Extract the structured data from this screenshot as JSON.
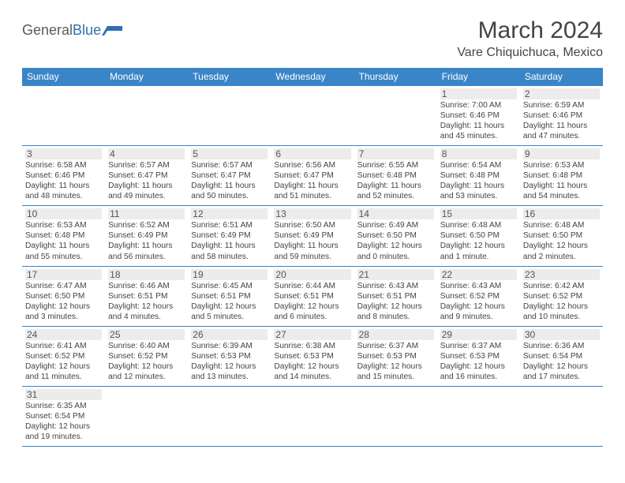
{
  "brand": {
    "text1": "General",
    "text2": "Blue"
  },
  "title": "March 2024",
  "location": "Vare Chiquichuca, Mexico",
  "colors": {
    "header_bg": "#3a85c7",
    "brand_blue": "#2f6fb0",
    "daynum_bg": "#ececec"
  },
  "weekdays": [
    "Sunday",
    "Monday",
    "Tuesday",
    "Wednesday",
    "Thursday",
    "Friday",
    "Saturday"
  ],
  "weeks": [
    [
      null,
      null,
      null,
      null,
      null,
      {
        "n": "1",
        "sr": "Sunrise: 7:00 AM",
        "ss": "Sunset: 6:46 PM",
        "dl": "Daylight: 11 hours and 45 minutes."
      },
      {
        "n": "2",
        "sr": "Sunrise: 6:59 AM",
        "ss": "Sunset: 6:46 PM",
        "dl": "Daylight: 11 hours and 47 minutes."
      }
    ],
    [
      {
        "n": "3",
        "sr": "Sunrise: 6:58 AM",
        "ss": "Sunset: 6:46 PM",
        "dl": "Daylight: 11 hours and 48 minutes."
      },
      {
        "n": "4",
        "sr": "Sunrise: 6:57 AM",
        "ss": "Sunset: 6:47 PM",
        "dl": "Daylight: 11 hours and 49 minutes."
      },
      {
        "n": "5",
        "sr": "Sunrise: 6:57 AM",
        "ss": "Sunset: 6:47 PM",
        "dl": "Daylight: 11 hours and 50 minutes."
      },
      {
        "n": "6",
        "sr": "Sunrise: 6:56 AM",
        "ss": "Sunset: 6:47 PM",
        "dl": "Daylight: 11 hours and 51 minutes."
      },
      {
        "n": "7",
        "sr": "Sunrise: 6:55 AM",
        "ss": "Sunset: 6:48 PM",
        "dl": "Daylight: 11 hours and 52 minutes."
      },
      {
        "n": "8",
        "sr": "Sunrise: 6:54 AM",
        "ss": "Sunset: 6:48 PM",
        "dl": "Daylight: 11 hours and 53 minutes."
      },
      {
        "n": "9",
        "sr": "Sunrise: 6:53 AM",
        "ss": "Sunset: 6:48 PM",
        "dl": "Daylight: 11 hours and 54 minutes."
      }
    ],
    [
      {
        "n": "10",
        "sr": "Sunrise: 6:53 AM",
        "ss": "Sunset: 6:48 PM",
        "dl": "Daylight: 11 hours and 55 minutes."
      },
      {
        "n": "11",
        "sr": "Sunrise: 6:52 AM",
        "ss": "Sunset: 6:49 PM",
        "dl": "Daylight: 11 hours and 56 minutes."
      },
      {
        "n": "12",
        "sr": "Sunrise: 6:51 AM",
        "ss": "Sunset: 6:49 PM",
        "dl": "Daylight: 11 hours and 58 minutes."
      },
      {
        "n": "13",
        "sr": "Sunrise: 6:50 AM",
        "ss": "Sunset: 6:49 PM",
        "dl": "Daylight: 11 hours and 59 minutes."
      },
      {
        "n": "14",
        "sr": "Sunrise: 6:49 AM",
        "ss": "Sunset: 6:50 PM",
        "dl": "Daylight: 12 hours and 0 minutes."
      },
      {
        "n": "15",
        "sr": "Sunrise: 6:48 AM",
        "ss": "Sunset: 6:50 PM",
        "dl": "Daylight: 12 hours and 1 minute."
      },
      {
        "n": "16",
        "sr": "Sunrise: 6:48 AM",
        "ss": "Sunset: 6:50 PM",
        "dl": "Daylight: 12 hours and 2 minutes."
      }
    ],
    [
      {
        "n": "17",
        "sr": "Sunrise: 6:47 AM",
        "ss": "Sunset: 6:50 PM",
        "dl": "Daylight: 12 hours and 3 minutes."
      },
      {
        "n": "18",
        "sr": "Sunrise: 6:46 AM",
        "ss": "Sunset: 6:51 PM",
        "dl": "Daylight: 12 hours and 4 minutes."
      },
      {
        "n": "19",
        "sr": "Sunrise: 6:45 AM",
        "ss": "Sunset: 6:51 PM",
        "dl": "Daylight: 12 hours and 5 minutes."
      },
      {
        "n": "20",
        "sr": "Sunrise: 6:44 AM",
        "ss": "Sunset: 6:51 PM",
        "dl": "Daylight: 12 hours and 6 minutes."
      },
      {
        "n": "21",
        "sr": "Sunrise: 6:43 AM",
        "ss": "Sunset: 6:51 PM",
        "dl": "Daylight: 12 hours and 8 minutes."
      },
      {
        "n": "22",
        "sr": "Sunrise: 6:43 AM",
        "ss": "Sunset: 6:52 PM",
        "dl": "Daylight: 12 hours and 9 minutes."
      },
      {
        "n": "23",
        "sr": "Sunrise: 6:42 AM",
        "ss": "Sunset: 6:52 PM",
        "dl": "Daylight: 12 hours and 10 minutes."
      }
    ],
    [
      {
        "n": "24",
        "sr": "Sunrise: 6:41 AM",
        "ss": "Sunset: 6:52 PM",
        "dl": "Daylight: 12 hours and 11 minutes."
      },
      {
        "n": "25",
        "sr": "Sunrise: 6:40 AM",
        "ss": "Sunset: 6:52 PM",
        "dl": "Daylight: 12 hours and 12 minutes."
      },
      {
        "n": "26",
        "sr": "Sunrise: 6:39 AM",
        "ss": "Sunset: 6:53 PM",
        "dl": "Daylight: 12 hours and 13 minutes."
      },
      {
        "n": "27",
        "sr": "Sunrise: 6:38 AM",
        "ss": "Sunset: 6:53 PM",
        "dl": "Daylight: 12 hours and 14 minutes."
      },
      {
        "n": "28",
        "sr": "Sunrise: 6:37 AM",
        "ss": "Sunset: 6:53 PM",
        "dl": "Daylight: 12 hours and 15 minutes."
      },
      {
        "n": "29",
        "sr": "Sunrise: 6:37 AM",
        "ss": "Sunset: 6:53 PM",
        "dl": "Daylight: 12 hours and 16 minutes."
      },
      {
        "n": "30",
        "sr": "Sunrise: 6:36 AM",
        "ss": "Sunset: 6:54 PM",
        "dl": "Daylight: 12 hours and 17 minutes."
      }
    ],
    [
      {
        "n": "31",
        "sr": "Sunrise: 6:35 AM",
        "ss": "Sunset: 6:54 PM",
        "dl": "Daylight: 12 hours and 19 minutes."
      },
      null,
      null,
      null,
      null,
      null,
      null
    ]
  ]
}
